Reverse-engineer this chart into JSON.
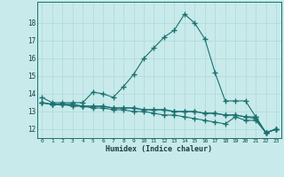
{
  "x": [
    0,
    1,
    2,
    3,
    4,
    5,
    6,
    7,
    8,
    9,
    10,
    11,
    12,
    13,
    14,
    15,
    16,
    17,
    18,
    19,
    20,
    21,
    22,
    23
  ],
  "line1": [
    13.8,
    13.5,
    13.5,
    13.5,
    13.5,
    14.1,
    14.0,
    13.8,
    14.4,
    15.1,
    16.0,
    16.6,
    17.2,
    17.6,
    18.5,
    18.0,
    17.1,
    15.2,
    13.6,
    13.6,
    13.6,
    12.7,
    11.8,
    12.0
  ],
  "line2": [
    13.5,
    13.4,
    13.4,
    13.4,
    13.3,
    13.3,
    13.3,
    13.2,
    13.2,
    13.2,
    13.1,
    13.1,
    13.1,
    13.0,
    13.0,
    13.0,
    12.9,
    12.9,
    12.8,
    12.8,
    12.7,
    12.7,
    11.8,
    12.0
  ],
  "line3": [
    13.5,
    13.4,
    13.4,
    13.4,
    13.3,
    13.3,
    13.3,
    13.2,
    13.2,
    13.2,
    13.1,
    13.1,
    13.1,
    13.0,
    13.0,
    13.0,
    12.9,
    12.9,
    12.8,
    12.8,
    12.7,
    12.6,
    11.8,
    12.0
  ],
  "line4": [
    13.5,
    13.4,
    13.4,
    13.3,
    13.3,
    13.2,
    13.2,
    13.1,
    13.1,
    13.0,
    13.0,
    12.9,
    12.8,
    12.8,
    12.7,
    12.6,
    12.5,
    12.4,
    12.3,
    12.7,
    12.5,
    12.5,
    11.8,
    12.0
  ],
  "bg_color": "#c8eaea",
  "line_color": "#1a7070",
  "grid_color": "#b0d8d8",
  "xlabel": "Humidex (Indice chaleur)",
  "ylim": [
    11.5,
    19.2
  ],
  "xlim": [
    -0.5,
    23.5
  ],
  "yticks": [
    12,
    13,
    14,
    15,
    16,
    17,
    18
  ],
  "xtick_labels": [
    "0",
    "1",
    "2",
    "3",
    "4",
    "5",
    "6",
    "7",
    "8",
    "9",
    "10",
    "11",
    "12",
    "13",
    "14",
    "15",
    "16",
    "17",
    "18",
    "19",
    "20",
    "21",
    "22",
    "23"
  ]
}
